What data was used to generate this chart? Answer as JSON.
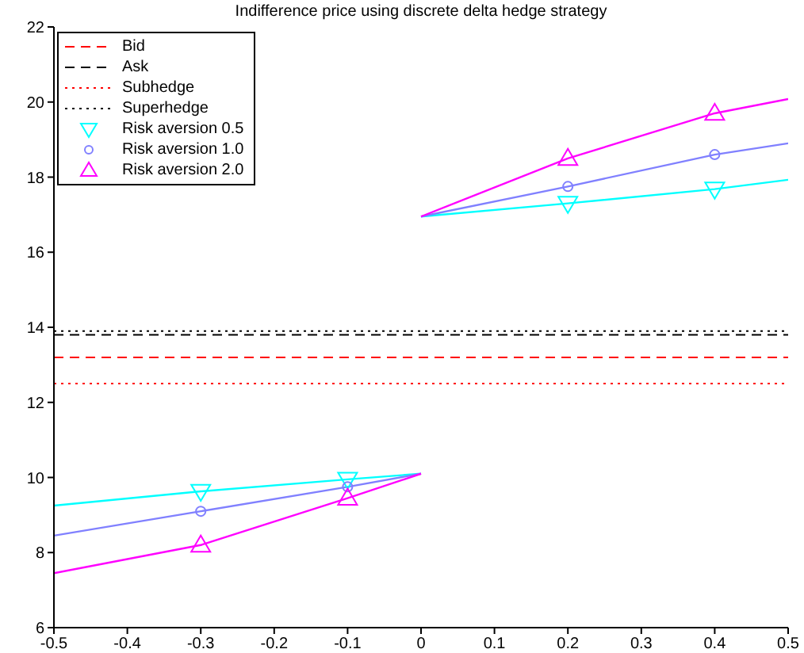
{
  "chart_data": {
    "type": "line",
    "title": "Indifference price using discrete delta hedge strategy",
    "xlim": [
      -0.5,
      0.5
    ],
    "xticks": [
      -0.5,
      -0.4,
      -0.3,
      -0.2,
      -0.1,
      0,
      0.1,
      0.2,
      0.3,
      0.4,
      0.5
    ],
    "ylim": [
      6,
      22
    ],
    "yticks": [
      6,
      8,
      10,
      12,
      14,
      16,
      18,
      20,
      22
    ],
    "grid": false,
    "legend": "top left",
    "line_style": "solid",
    "marker": "none",
    "ref_lines": [
      {
        "axis": "y",
        "value": 13.2,
        "label": "Bid",
        "color": "#ff0000",
        "line_style": "dashed"
      },
      {
        "axis": "y",
        "value": 13.8,
        "label": "Ask",
        "color": "#000000",
        "line_style": "dashed"
      },
      {
        "axis": "y",
        "value": 12.5,
        "label": "Subhedge",
        "color": "#ff0000",
        "line_style": "dotted"
      },
      {
        "axis": "y",
        "value": 13.9,
        "label": "Superhedge",
        "color": "#000000",
        "line_style": "dotted"
      }
    ],
    "series": [
      {
        "color": "#00ffff",
        "x": [
          -0.5,
          -0.3,
          -0.1,
          0
        ],
        "values": [
          9.25,
          9.63,
          9.95,
          10.1
        ]
      },
      {
        "color": "#00ffff",
        "x": [
          0,
          0.2,
          0.4,
          0.5
        ],
        "values": [
          16.95,
          17.3,
          17.68,
          17.93
        ]
      },
      {
        "color": "#8080ff",
        "x": [
          -0.5,
          -0.3,
          -0.1,
          0
        ],
        "values": [
          8.45,
          9.1,
          9.75,
          10.1
        ]
      },
      {
        "color": "#8080ff",
        "x": [
          0,
          0.2,
          0.4,
          0.5
        ],
        "values": [
          16.95,
          17.75,
          18.6,
          18.9
        ]
      },
      {
        "color": "#ff00ff",
        "x": [
          -0.5,
          -0.3,
          -0.1,
          0
        ],
        "values": [
          7.45,
          8.2,
          9.45,
          10.1
        ]
      },
      {
        "color": "#ff00ff",
        "x": [
          0,
          0.2,
          0.4,
          0.5
        ],
        "values": [
          16.95,
          18.5,
          19.7,
          20.08
        ]
      },
      {
        "type": "scatter",
        "name": "Risk aversion 0.5",
        "color": "#00ffff",
        "marker": "triangle-down",
        "x": [
          -0.3,
          -0.1,
          0.2,
          0.4
        ],
        "values": [
          9.63,
          9.95,
          17.3,
          17.68
        ]
      },
      {
        "type": "scatter",
        "name": "Risk aversion 1.0",
        "color": "#8080ff",
        "marker": "circle",
        "x": [
          -0.3,
          -0.1,
          0.2,
          0.4
        ],
        "values": [
          9.1,
          9.75,
          17.75,
          18.6
        ]
      },
      {
        "type": "scatter",
        "name": "Risk aversion 2.0",
        "color": "#ff00ff",
        "marker": "triangle",
        "x": [
          -0.3,
          -0.1,
          0.2,
          0.4
        ],
        "values": [
          8.2,
          9.45,
          18.5,
          19.7
        ]
      }
    ]
  }
}
